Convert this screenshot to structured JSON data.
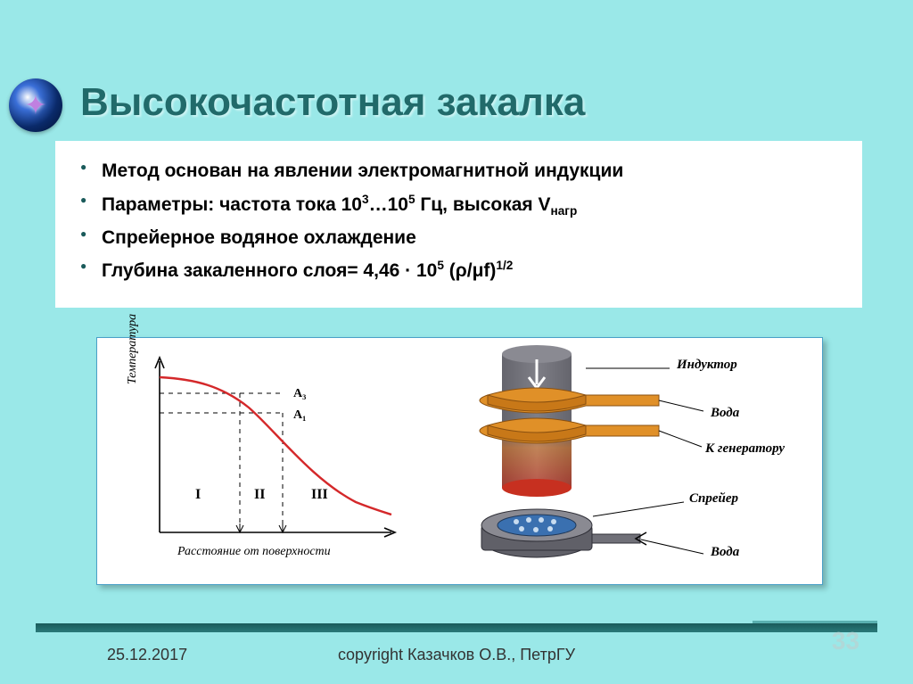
{
  "slide": {
    "title": "Высокочастотная закалка",
    "bullets": [
      "Метод основан на явлении электромагнитной индукции",
      "Параметры: частота тока 10<sup>3</sup>…10<sup>5</sup> Гц, высокая V<sub>нагр</sub>",
      "Спрейерное водяное охлаждение",
      "Глубина закаленного слоя= 4,46 · 10<sup>5</sup> (ρ/μf)<sup>1/2</sup>"
    ],
    "date": "25.12.2017",
    "copyright": "copyright Казачков О.В., ПетрГУ",
    "page": "33"
  },
  "colors": {
    "background": "#9ae8e8",
    "title": "#216a6a",
    "accent_dark": "#1a5a5a",
    "box_border": "#4aa0c8",
    "curve": "#d4282a",
    "metal": "#707078",
    "heated_top": "#d57830",
    "heated_bottom": "#c73020",
    "coil": "#e09028",
    "sprayer_fill": "#3a70b0"
  },
  "chart": {
    "xlabel": "Расстояние от поверхности",
    "ylabel": "Температура",
    "levels": [
      "А₃",
      "А₁"
    ],
    "zones": [
      "I",
      "II",
      "III"
    ],
    "axis_fontsize": 14,
    "label_fontsize": 14,
    "curve_color": "#d4282a",
    "curve_width": 2.4,
    "dash": "5,5",
    "x_range": [
      0,
      300
    ],
    "y_range": [
      0,
      200
    ],
    "curve_points": [
      [
        0,
        18
      ],
      [
        40,
        22
      ],
      [
        80,
        34
      ],
      [
        120,
        58
      ],
      [
        160,
        92
      ],
      [
        200,
        126
      ],
      [
        240,
        150
      ],
      [
        280,
        164
      ],
      [
        300,
        168
      ]
    ],
    "a3_y": 36,
    "a1_y": 58,
    "zone1_x": 90,
    "zone2_x": 138
  },
  "diagram": {
    "labels": {
      "inductor": "Индуктор",
      "water": "Вода",
      "generator": "К генератору",
      "sprayer": "Спрейер",
      "water2": "Вода"
    },
    "arrow_down": true,
    "fontsize": 15
  }
}
